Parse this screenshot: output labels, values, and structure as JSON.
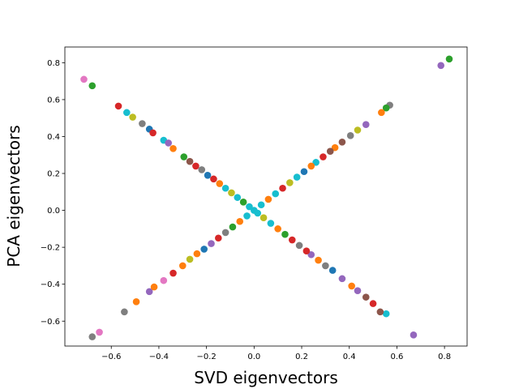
{
  "chart_data": {
    "type": "scatter",
    "title": "",
    "xlabel": "SVD eigenvectors",
    "ylabel": "PCA eigenvectors",
    "xlim": [
      -0.795,
      0.895
    ],
    "ylim": [
      -0.735,
      0.885
    ],
    "xticks": [
      -0.6,
      -0.4,
      -0.2,
      0.0,
      0.2,
      0.4,
      0.6,
      0.8
    ],
    "xtick_labels": [
      "−0.6",
      "−0.4",
      "−0.2",
      "0.0",
      "0.2",
      "0.4",
      "0.6",
      "0.8"
    ],
    "yticks": [
      -0.6,
      -0.4,
      -0.2,
      0.0,
      0.2,
      0.4,
      0.6,
      0.8
    ],
    "ytick_labels": [
      "−0.6",
      "−0.4",
      "−0.2",
      "0.0",
      "0.2",
      "0.4",
      "0.6",
      "0.8"
    ],
    "grid": false,
    "legend": "none",
    "palette": [
      "#1f77b4",
      "#ff7f0e",
      "#2ca02c",
      "#d62728",
      "#9467bd",
      "#8c564b",
      "#e377c2",
      "#7f7f7f",
      "#bcbd22",
      "#17becf"
    ],
    "points": [
      {
        "x": 0.82,
        "y": 0.82,
        "c": 2
      },
      {
        "x": 0.785,
        "y": 0.785,
        "c": 4
      },
      {
        "x": -0.715,
        "y": 0.71,
        "c": 6
      },
      {
        "x": -0.68,
        "y": 0.675,
        "c": 2
      },
      {
        "x": -0.68,
        "y": -0.685,
        "c": 7
      },
      {
        "x": -0.65,
        "y": -0.66,
        "c": 6
      },
      {
        "x": 0.67,
        "y": -0.675,
        "c": 4
      },
      {
        "x": -0.57,
        "y": 0.565,
        "c": 3
      },
      {
        "x": -0.535,
        "y": 0.53,
        "c": 9
      },
      {
        "x": -0.51,
        "y": 0.505,
        "c": 8
      },
      {
        "x": -0.47,
        "y": 0.47,
        "c": 7
      },
      {
        "x": -0.44,
        "y": 0.44,
        "c": 0
      },
      {
        "x": -0.425,
        "y": 0.42,
        "c": 3
      },
      {
        "x": -0.38,
        "y": 0.38,
        "c": 9
      },
      {
        "x": -0.36,
        "y": 0.365,
        "c": 4
      },
      {
        "x": -0.34,
        "y": 0.335,
        "c": 1
      },
      {
        "x": -0.295,
        "y": 0.29,
        "c": 2
      },
      {
        "x": -0.27,
        "y": 0.265,
        "c": 5
      },
      {
        "x": -0.245,
        "y": 0.24,
        "c": 3
      },
      {
        "x": -0.22,
        "y": 0.22,
        "c": 7
      },
      {
        "x": -0.195,
        "y": 0.19,
        "c": 0
      },
      {
        "x": -0.17,
        "y": 0.17,
        "c": 3
      },
      {
        "x": -0.145,
        "y": 0.145,
        "c": 1
      },
      {
        "x": -0.12,
        "y": 0.12,
        "c": 9
      },
      {
        "x": -0.095,
        "y": 0.095,
        "c": 8
      },
      {
        "x": -0.07,
        "y": 0.07,
        "c": 9
      },
      {
        "x": -0.045,
        "y": 0.045,
        "c": 2
      },
      {
        "x": -0.02,
        "y": 0.02,
        "c": 9
      },
      {
        "x": 0.57,
        "y": 0.57,
        "c": 7
      },
      {
        "x": 0.555,
        "y": 0.555,
        "c": 2
      },
      {
        "x": 0.535,
        "y": 0.53,
        "c": 1
      },
      {
        "x": 0.47,
        "y": 0.465,
        "c": 4
      },
      {
        "x": 0.435,
        "y": 0.435,
        "c": 8
      },
      {
        "x": 0.405,
        "y": 0.405,
        "c": 7
      },
      {
        "x": 0.37,
        "y": 0.37,
        "c": 5
      },
      {
        "x": 0.34,
        "y": 0.34,
        "c": 1
      },
      {
        "x": 0.32,
        "y": 0.32,
        "c": 5
      },
      {
        "x": 0.29,
        "y": 0.29,
        "c": 3
      },
      {
        "x": 0.26,
        "y": 0.26,
        "c": 9
      },
      {
        "x": 0.24,
        "y": 0.24,
        "c": 1
      },
      {
        "x": 0.21,
        "y": 0.21,
        "c": 0
      },
      {
        "x": 0.18,
        "y": 0.18,
        "c": 9
      },
      {
        "x": 0.15,
        "y": 0.15,
        "c": 8
      },
      {
        "x": 0.12,
        "y": 0.12,
        "c": 3
      },
      {
        "x": 0.09,
        "y": 0.09,
        "c": 9
      },
      {
        "x": 0.06,
        "y": 0.06,
        "c": 1
      },
      {
        "x": 0.03,
        "y": 0.03,
        "c": 9
      },
      {
        "x": 0.0,
        "y": 0.0,
        "c": 9
      },
      {
        "x": 0.555,
        "y": -0.56,
        "c": 9
      },
      {
        "x": 0.53,
        "y": -0.55,
        "c": 5
      },
      {
        "x": 0.5,
        "y": -0.505,
        "c": 3
      },
      {
        "x": 0.47,
        "y": -0.47,
        "c": 5
      },
      {
        "x": 0.435,
        "y": -0.435,
        "c": 4
      },
      {
        "x": 0.41,
        "y": -0.41,
        "c": 1
      },
      {
        "x": 0.37,
        "y": -0.37,
        "c": 4
      },
      {
        "x": 0.33,
        "y": -0.325,
        "c": 0
      },
      {
        "x": 0.3,
        "y": -0.3,
        "c": 7
      },
      {
        "x": 0.27,
        "y": -0.27,
        "c": 1
      },
      {
        "x": 0.24,
        "y": -0.24,
        "c": 4
      },
      {
        "x": 0.22,
        "y": -0.22,
        "c": 3
      },
      {
        "x": 0.19,
        "y": -0.19,
        "c": 7
      },
      {
        "x": 0.16,
        "y": -0.16,
        "c": 3
      },
      {
        "x": 0.13,
        "y": -0.13,
        "c": 2
      },
      {
        "x": 0.1,
        "y": -0.1,
        "c": 1
      },
      {
        "x": 0.07,
        "y": -0.07,
        "c": 9
      },
      {
        "x": 0.04,
        "y": -0.04,
        "c": 8
      },
      {
        "x": 0.015,
        "y": -0.015,
        "c": 9
      },
      {
        "x": -0.545,
        "y": -0.55,
        "c": 7
      },
      {
        "x": -0.495,
        "y": -0.495,
        "c": 1
      },
      {
        "x": -0.44,
        "y": -0.44,
        "c": 4
      },
      {
        "x": -0.42,
        "y": -0.415,
        "c": 1
      },
      {
        "x": -0.38,
        "y": -0.38,
        "c": 6
      },
      {
        "x": -0.34,
        "y": -0.34,
        "c": 3
      },
      {
        "x": -0.3,
        "y": -0.3,
        "c": 1
      },
      {
        "x": -0.27,
        "y": -0.265,
        "c": 8
      },
      {
        "x": -0.24,
        "y": -0.235,
        "c": 1
      },
      {
        "x": -0.21,
        "y": -0.21,
        "c": 0
      },
      {
        "x": -0.18,
        "y": -0.18,
        "c": 4
      },
      {
        "x": -0.15,
        "y": -0.15,
        "c": 3
      },
      {
        "x": -0.12,
        "y": -0.12,
        "c": 7
      },
      {
        "x": -0.09,
        "y": -0.09,
        "c": 2
      },
      {
        "x": -0.06,
        "y": -0.06,
        "c": 1
      },
      {
        "x": -0.03,
        "y": -0.03,
        "c": 9
      }
    ]
  }
}
